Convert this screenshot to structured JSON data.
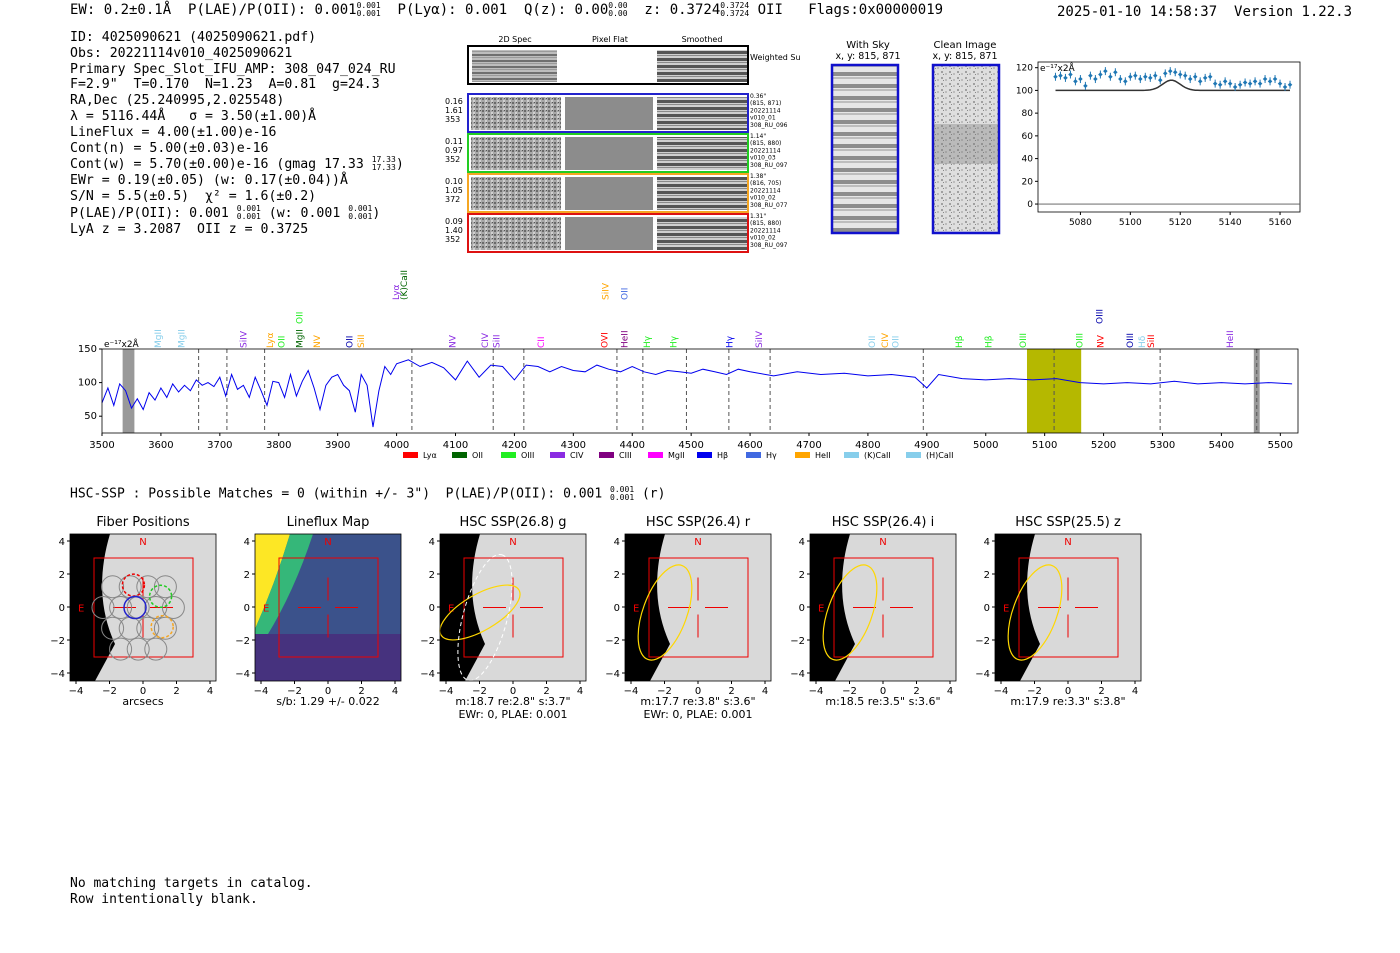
{
  "header": {
    "ew": "EW: 0.2±0.1Å",
    "plae_label": "P(LAE)/P(OII): 0.001",
    "plae_hi": "0.001",
    "plae_lo": "0.001",
    "plya": "P(Lyα): 0.001",
    "qz_label": "Q(z): 0.00",
    "qz_hi": "0.00",
    "qz_lo": "0.00",
    "z_label": "z: 0.3724",
    "z_hi": "0.3724",
    "z_lo": "0.3724",
    "z_line": "OII",
    "flags": "Flags:0x00000019",
    "datetime": "2025-01-10 14:58:37",
    "version": "Version 1.22.3"
  },
  "info": {
    "id": "ID: 4025090621 (4025090621.pdf)",
    "obs": "Obs: 20221114v010_4025090621",
    "primary": "Primary Spec_Slot_IFU_AMP: 308_047_024_RU",
    "fwhm": "F=2.9\"  T=0.170  N=1.23  A=0.81  g=24.3",
    "radec": "RA,Dec (25.240995,2.025548)",
    "lambda": "λ = 5116.44Å   σ = 3.50(±1.00)Å",
    "lineflux": "LineFlux = 4.00(±1.00)e-16",
    "contn": "Cont(n) = 5.00(±0.03)e-16",
    "contw": "Cont(w) = 5.70(±0.00)e-16 (gmag 17.33",
    "gmag_hi": "17.33",
    "gmag_lo": "17.33",
    "ewr": "EWr = 0.19(±0.05) (w: 0.17(±0.04))Å",
    "sn": "S/N = 5.5(±0.5)  χ² = 1.6(±0.2)",
    "plae": "P(LAE)/P(OII): 0.001",
    "plae_hi": "0.001",
    "plae_lo": "0.001",
    "plae_w": "(w: 0.001",
    "plae_w_hi": "0.001",
    "plae_w_lo": "0.001",
    "lya": "LyA z = 3.2087  OII z = 0.3725"
  },
  "cutouts": {
    "col_titles": [
      "2D Spec",
      "Pixel Flat",
      "Smoothed"
    ],
    "weighted_sum": "Weighted Sum",
    "rows": [
      {
        "left": [
          "0.16",
          "1.61",
          "353"
        ],
        "right": [
          "0.36\"",
          "(815, 871)",
          "20221114",
          "v010_01",
          "308_RU_096"
        ],
        "color": "#2222cc"
      },
      {
        "left": [
          "0.11",
          "0.97",
          "352"
        ],
        "right": [
          "1.14\"",
          "(815, 880)",
          "20221114",
          "v010_03",
          "308_RU_097"
        ],
        "color": "#22cc22"
      },
      {
        "left": [
          "0.10",
          "1.05",
          "372"
        ],
        "right": [
          "1.38\"",
          "(816, 705)",
          "20221114",
          "v010_02",
          "308_RU_077"
        ],
        "color": "#f5a623"
      },
      {
        "left": [
          "0.09",
          "1.40",
          "352"
        ],
        "right": [
          "1.31\"",
          "(815, 880)",
          "20221114",
          "v010_02",
          "308_RU_097"
        ],
        "color": "#dd1111"
      }
    ]
  },
  "sky": {
    "with_sky_title": "With Sky",
    "with_sky_xy": "x, y: 815, 871",
    "clean_title": "Clean Image",
    "clean_xy": "x, y: 815, 871"
  },
  "chart_data": [
    {
      "type": "scatter",
      "name": "zoom-spectrum",
      "ylabel": "e⁻¹⁷x2Å",
      "xlim": [
        5063,
        5168
      ],
      "ylim": [
        -7,
        125
      ],
      "xticks": [
        "5080",
        "5100",
        "5120",
        "5140",
        "5160"
      ],
      "yticks": [
        "0",
        "20",
        "40",
        "60",
        "80",
        "100",
        "120"
      ],
      "x": [
        5070,
        5072,
        5074,
        5076,
        5078,
        5080,
        5082,
        5084,
        5086,
        5088,
        5090,
        5092,
        5094,
        5096,
        5098,
        5100,
        5102,
        5104,
        5106,
        5108,
        5110,
        5112,
        5114,
        5116,
        5118,
        5120,
        5122,
        5124,
        5126,
        5128,
        5130,
        5132,
        5134,
        5136,
        5138,
        5140,
        5142,
        5144,
        5146,
        5148,
        5150,
        5152,
        5154,
        5156,
        5158,
        5160,
        5162,
        5164
      ],
      "y": [
        112,
        113,
        111,
        114,
        108,
        110,
        104,
        113,
        110,
        114,
        117,
        112,
        116,
        110,
        108,
        112,
        113,
        110,
        112,
        111,
        113,
        109,
        115,
        117,
        116,
        114,
        113,
        110,
        112,
        108,
        111,
        112,
        106,
        105,
        108,
        106,
        103,
        105,
        107,
        106,
        108,
        106,
        110,
        108,
        110,
        106,
        103,
        105
      ],
      "model_center": 5116.44,
      "model_base": 100,
      "model_amp": 9,
      "model_sigma": 3.5
    },
    {
      "type": "line",
      "name": "full-spectrum",
      "ylabel": "e⁻¹⁷x2Å",
      "xlim": [
        3500,
        5530
      ],
      "ylim": [
        25,
        150
      ],
      "xticks": [
        "3500",
        "3600",
        "3700",
        "3800",
        "3900",
        "4000",
        "4100",
        "4200",
        "4300",
        "4400",
        "4500",
        "4600",
        "4700",
        "4800",
        "4900",
        "5000",
        "5100",
        "5200",
        "5300",
        "5400",
        "5500"
      ],
      "yticks": [
        "50",
        "100",
        "150"
      ],
      "x": [
        3500,
        3510,
        3520,
        3530,
        3540,
        3550,
        3560,
        3570,
        3580,
        3590,
        3600,
        3610,
        3620,
        3630,
        3640,
        3650,
        3660,
        3670,
        3680,
        3690,
        3700,
        3710,
        3720,
        3730,
        3740,
        3750,
        3760,
        3770,
        3780,
        3790,
        3800,
        3810,
        3820,
        3830,
        3840,
        3850,
        3860,
        3870,
        3880,
        3890,
        3900,
        3910,
        3920,
        3930,
        3940,
        3950,
        3960,
        3970,
        3980,
        3990,
        4000,
        4020,
        4040,
        4060,
        4080,
        4100,
        4120,
        4140,
        4160,
        4180,
        4200,
        4220,
        4240,
        4260,
        4280,
        4300,
        4320,
        4340,
        4360,
        4380,
        4400,
        4420,
        4440,
        4460,
        4480,
        4500,
        4520,
        4540,
        4560,
        4580,
        4600,
        4640,
        4680,
        4720,
        4760,
        4800,
        4840,
        4880,
        4900,
        4920,
        4960,
        5000,
        5040,
        5080,
        5120,
        5160,
        5200,
        5240,
        5280,
        5320,
        5360,
        5400,
        5440,
        5480,
        5520
      ],
      "y": [
        70,
        92,
        66,
        98,
        88,
        62,
        76,
        60,
        85,
        74,
        92,
        78,
        98,
        86,
        96,
        88,
        104,
        96,
        100,
        94,
        108,
        80,
        112,
        90,
        96,
        78,
        108,
        88,
        66,
        102,
        100,
        78,
        112,
        80,
        102,
        118,
        92,
        60,
        96,
        108,
        112,
        96,
        88,
        56,
        112,
        96,
        34,
        88,
        124,
        112,
        128,
        134,
        124,
        130,
        122,
        104,
        132,
        108,
        126,
        124,
        104,
        126,
        124,
        116,
        124,
        118,
        116,
        126,
        120,
        116,
        124,
        116,
        112,
        118,
        116,
        114,
        120,
        116,
        112,
        120,
        116,
        110,
        116,
        112,
        114,
        110,
        112,
        108,
        92,
        112,
        106,
        104,
        106,
        104,
        106,
        100,
        98,
        100,
        98,
        102,
        98,
        100,
        98,
        100,
        98
      ],
      "shaded_ranges": [
        [
          3535,
          3555
        ],
        [
          5070,
          5162
        ],
        [
          5455,
          5465
        ]
      ],
      "dashed_lines": [
        3664,
        3712,
        3776,
        4026,
        4164,
        4216,
        4374,
        4418,
        4492,
        4564,
        4634,
        4894,
        5116,
        5296,
        5460
      ],
      "legend": [
        "Lyα",
        "OII",
        "OIII",
        "CIV",
        "CIII",
        "MgII",
        "Hβ",
        "Hγ",
        "HeII",
        "(K)CaII",
        "(H)CaII"
      ],
      "legend_colors": [
        "#ff0000",
        "#006400",
        "#22ee22",
        "#8a2be2",
        "#800080",
        "#ff00ff",
        "#0000ee",
        "#4169e1",
        "#ffa500",
        "#87ceeb",
        "#87ceeb"
      ],
      "line_labels": [
        {
          "label": "MgII",
          "x": 3600,
          "color": "#87ceeb",
          "row": 2
        },
        {
          "label": "MgII",
          "x": 3640,
          "color": "#87ceeb",
          "row": 2
        },
        {
          "label": "SiIV",
          "x": 3745,
          "color": "#8a2be2",
          "row": 2
        },
        {
          "label": "Lyα",
          "x": 3790,
          "color": "#ffa500",
          "row": 2
        },
        {
          "label": "OII",
          "x": 3810,
          "color": "#22ee22",
          "row": 2
        },
        {
          "label": "MgII",
          "x": 3840,
          "color": "#006400",
          "row": 2
        },
        {
          "label": "OII",
          "x": 3840,
          "color": "#22ee22",
          "row": 1
        },
        {
          "label": "NV",
          "x": 3870,
          "color": "#ffa500",
          "row": 2
        },
        {
          "label": "OII",
          "x": 3925,
          "color": "#0000aa",
          "row": 2
        },
        {
          "label": "SiII",
          "x": 3945,
          "color": "#ffa500",
          "row": 2
        },
        {
          "label": "Lyα",
          "x": 4004,
          "color": "#8a2be2",
          "row": 0
        },
        {
          "label": "(K)CaII",
          "x": 4018,
          "color": "#006400",
          "row": 0
        },
        {
          "label": "NV",
          "x": 4100,
          "color": "#8a2be2",
          "row": 2
        },
        {
          "label": "CIV",
          "x": 4155,
          "color": "#8a2be2",
          "row": 2
        },
        {
          "label": "SiII",
          "x": 4175,
          "color": "#8a2be2",
          "row": 2
        },
        {
          "label": "CII",
          "x": 4250,
          "color": "#ff00ff",
          "row": 2
        },
        {
          "label": "SiIV",
          "x": 4360,
          "color": "#ffa500",
          "row": 0
        },
        {
          "label": "OVI",
          "x": 4358,
          "color": "#ff0000",
          "row": 2
        },
        {
          "label": "OII",
          "x": 4392,
          "color": "#4169e1",
          "row": 0
        },
        {
          "label": "HeII",
          "x": 4392,
          "color": "#800080",
          "row": 2
        },
        {
          "label": "Hγ",
          "x": 4430,
          "color": "#22ee22",
          "row": 2
        },
        {
          "label": "Hγ",
          "x": 4475,
          "color": "#22ee22",
          "row": 2
        },
        {
          "label": "Hγ",
          "x": 4570,
          "color": "#0000ee",
          "row": 2
        },
        {
          "label": "SiIV",
          "x": 4620,
          "color": "#8a2be2",
          "row": 2
        },
        {
          "label": "OII",
          "x": 4812,
          "color": "#87ceeb",
          "row": 2
        },
        {
          "label": "CIV",
          "x": 4834,
          "color": "#ffa500",
          "row": 2
        },
        {
          "label": "OII",
          "x": 4852,
          "color": "#87ceeb",
          "row": 2
        },
        {
          "label": "Hβ",
          "x": 4960,
          "color": "#22ee22",
          "row": 2
        },
        {
          "label": "Hβ",
          "x": 5010,
          "color": "#22ee22",
          "row": 2
        },
        {
          "label": "OIII",
          "x": 5068,
          "color": "#22ee22",
          "row": 2
        },
        {
          "label": "OIII",
          "x": 5164,
          "color": "#22ee22",
          "row": 2
        },
        {
          "label": "OIII",
          "x": 5198,
          "color": "#0000aa",
          "row": 1
        },
        {
          "label": "NV",
          "x": 5200,
          "color": "#ff0000",
          "row": 2
        },
        {
          "label": "OIII",
          "x": 5250,
          "color": "#0000aa",
          "row": 2
        },
        {
          "label": "Hδ",
          "x": 5270,
          "color": "#87ceeb",
          "row": 2
        },
        {
          "label": "SiII",
          "x": 5286,
          "color": "#ff0000",
          "row": 2
        },
        {
          "label": "HeII",
          "x": 5420,
          "color": "#8a2be2",
          "row": 2
        }
      ]
    }
  ],
  "hsc": {
    "summary": "HSC-SSP : Possible Matches = 0 (within +/- 3\")  P(LAE)/P(OII): 0.001",
    "summary_hi": "0.001",
    "summary_lo": "0.001",
    "summary_band": "(r)"
  },
  "panels": [
    {
      "title": "Fiber Positions",
      "xlabel": [
        "arcsecs"
      ],
      "kind": "fiber"
    },
    {
      "title": "Lineflux Map",
      "xlabel": [
        "s/b: 1.29 +/- 0.022"
      ],
      "kind": "lineflux"
    },
    {
      "title": "HSC SSP(26.8) g",
      "xlabel": [
        "m:18.7  re:2.8\"  s:3.7\"",
        "EWr: 0, PLAE: 0.001"
      ],
      "kind": "g"
    },
    {
      "title": "HSC SSP(26.4) r",
      "xlabel": [
        "m:17.7  re:3.8\"  s:3.6\"",
        "EWr: 0, PLAE: 0.001"
      ],
      "kind": "r"
    },
    {
      "title": "HSC SSP(26.4) i",
      "xlabel": [
        "m:18.5  re:3.5\"  s:3.6\""
      ],
      "kind": "i"
    },
    {
      "title": "HSC SSP(25.5) z",
      "xlabel": [
        "m:17.9  re:3.3\"  s:3.8\""
      ],
      "kind": "z"
    }
  ],
  "panel_ticks": {
    "x": [
      "−4",
      "−2",
      "0",
      "2",
      "4"
    ],
    "y": [
      "4",
      "2",
      "0",
      "−2",
      "−4"
    ],
    "north": "N",
    "east": "E"
  },
  "footer": {
    "line1": "No matching targets in catalog.",
    "line2": "Row intentionally blank."
  }
}
